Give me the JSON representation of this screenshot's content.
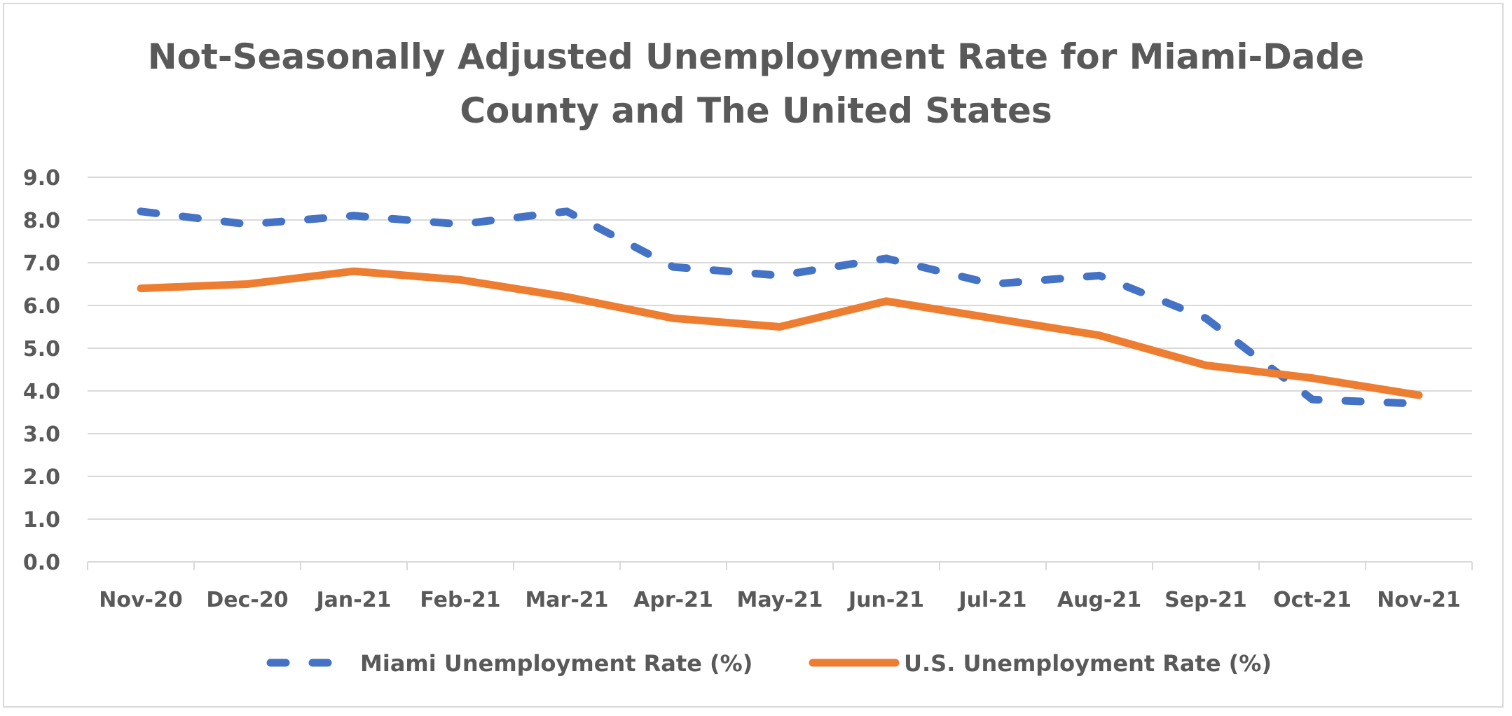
{
  "chart_data": {
    "type": "line",
    "title_lines": [
      "Not-Seasonally Adjusted Unemployment Rate for Miami-Dade",
      "County and The United States"
    ],
    "xlabel": "",
    "ylabel": "",
    "categories": [
      "Nov-20",
      "Dec-20",
      "Jan-21",
      "Feb-21",
      "Mar-21",
      "Apr-21",
      "May-21",
      "Jun-21",
      "Jul-21",
      "Aug-21",
      "Sep-21",
      "Oct-21",
      "Nov-21"
    ],
    "ylim": [
      0,
      9
    ],
    "yticks": [
      "0.0",
      "1.0",
      "2.0",
      "3.0",
      "4.0",
      "5.0",
      "6.0",
      "7.0",
      "8.0",
      "9.0"
    ],
    "grid": true,
    "legend_position": "bottom",
    "series": [
      {
        "name": "Miami Unemployment Rate (%)",
        "color": "#4472C4",
        "style": "dashed",
        "values": [
          8.2,
          7.9,
          8.1,
          7.9,
          8.2,
          6.9,
          6.7,
          7.1,
          6.5,
          6.7,
          5.7,
          3.8,
          3.7
        ]
      },
      {
        "name": "U.S. Unemployment Rate (%)",
        "color": "#ED7D31",
        "style": "solid",
        "values": [
          6.4,
          6.5,
          6.8,
          6.6,
          6.2,
          5.7,
          5.5,
          6.1,
          5.7,
          5.3,
          4.6,
          4.3,
          3.9
        ]
      }
    ]
  }
}
